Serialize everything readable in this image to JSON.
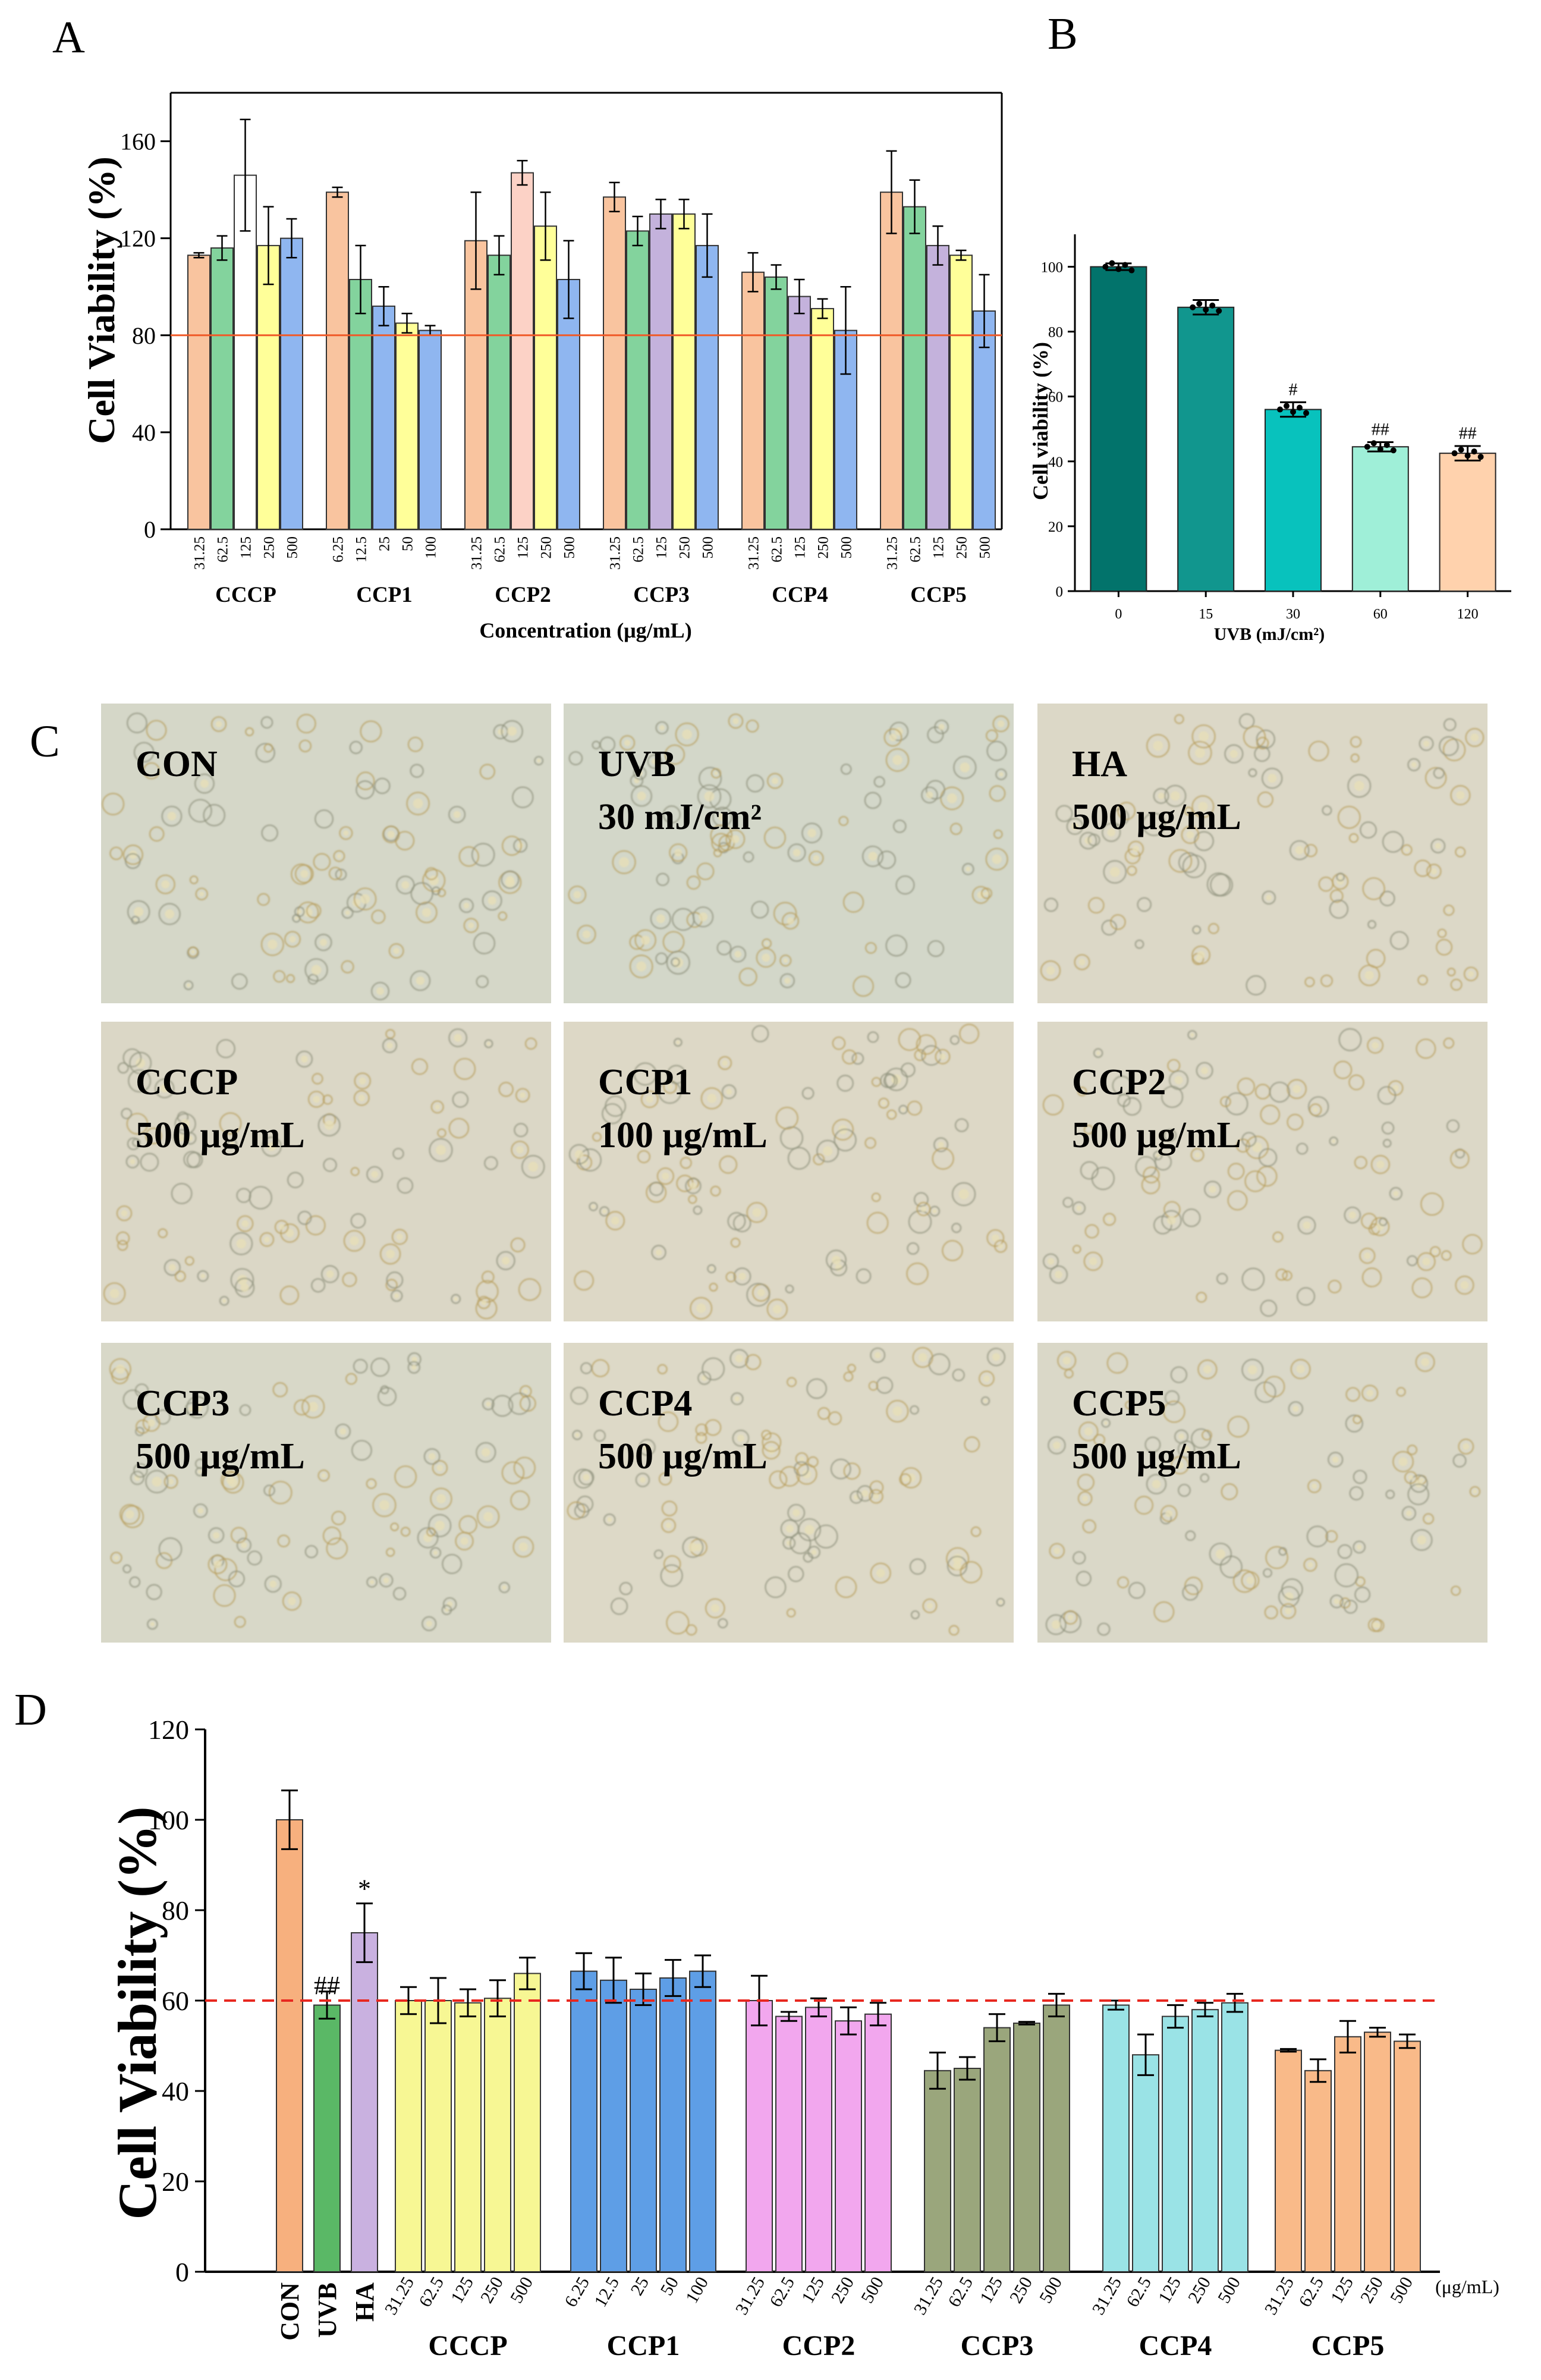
{
  "figure": {
    "panel_letters": [
      "A",
      "B",
      "C",
      "D"
    ],
    "colors": {
      "orange": "#f9c49f",
      "green": "#83d39d",
      "white": "#ffffff",
      "yellow": "#ffff99",
      "blue": "#8fb6f0",
      "pink": "#fcd2c6",
      "purple": "#c4b2dc",
      "tealDark": "#02736b",
      "teal": "#11968e",
      "cyan": "#08c2bd",
      "mint": "#9fefd8",
      "peach": "#ffd2ad",
      "orangeD": "#f7b07e",
      "greenD": "#5ab866",
      "lilacD": "#c9b1e0",
      "yellowD": "#f7f794",
      "blueD": "#5e9ee6",
      "pinkD": "#f2a7ee",
      "oliveD": "#9aa67c",
      "aquaD": "#9ae3e6",
      "apricotD": "#f9ba89",
      "threshold_red": "#f05a28",
      "dash_red": "#e8271f"
    },
    "micrographs": [
      {
        "line1": "CON",
        "line2": "",
        "tone": "#d5d7c8"
      },
      {
        "line1": "UVB",
        "line2": "30 mJ/cm²",
        "tone": "#d3d7c9"
      },
      {
        "line1": "HA",
        "line2": "500 μg/mL",
        "tone": "#dcd8c7"
      },
      {
        "line1": "CCCP",
        "line2": "500 μg/mL",
        "tone": "#dbd7c6"
      },
      {
        "line1": "CCP1",
        "line2": "100 μg/mL",
        "tone": "#ddd8c6"
      },
      {
        "line1": "CCP2",
        "line2": "500 μg/mL",
        "tone": "#dcd8c7"
      },
      {
        "line1": "CCP3",
        "line2": "500 μg/mL",
        "tone": "#d8d8c8"
      },
      {
        "line1": "CCP4",
        "line2": "500 μg/mL",
        "tone": "#ddd9c7"
      },
      {
        "line1": "CCP5",
        "line2": "500 μg/mL",
        "tone": "#dad8c8"
      }
    ]
  },
  "chart_data": [
    {
      "panel": "A",
      "type": "bar",
      "title": "",
      "xlabel": "Concentration (μg/mL)",
      "ylabel": "Cell Viability (%)",
      "ylim": [
        0,
        180
      ],
      "yticks": [
        0,
        40,
        80,
        120,
        160
      ],
      "threshold_line": 80,
      "groups": [
        {
          "name": "CCCP",
          "bars": [
            {
              "label": "31.25",
              "value": 113,
              "err": 1,
              "color": "orange"
            },
            {
              "label": "62.5",
              "value": 116,
              "err": 5,
              "color": "green"
            },
            {
              "label": "125",
              "value": 146,
              "err": 23,
              "color": "white"
            },
            {
              "label": "250",
              "value": 117,
              "err": 16,
              "color": "yellow"
            },
            {
              "label": "500",
              "value": 120,
              "err": 8,
              "color": "blue"
            }
          ]
        },
        {
          "name": "CCP1",
          "bars": [
            {
              "label": "6.25",
              "value": 139,
              "err": 2,
              "color": "orange"
            },
            {
              "label": "12.5",
              "value": 103,
              "err": 14,
              "color": "green"
            },
            {
              "label": "25",
              "value": 92,
              "err": 8,
              "color": "blue"
            },
            {
              "label": "50",
              "value": 85,
              "err": 4,
              "color": "yellow"
            },
            {
              "label": "100",
              "value": 82,
              "err": 2,
              "color": "blue"
            }
          ]
        },
        {
          "name": "CCP2",
          "bars": [
            {
              "label": "31.25",
              "value": 119,
              "err": 20,
              "color": "orange"
            },
            {
              "label": "62.5",
              "value": 113,
              "err": 8,
              "color": "green"
            },
            {
              "label": "125",
              "value": 147,
              "err": 5,
              "color": "pink"
            },
            {
              "label": "250",
              "value": 125,
              "err": 14,
              "color": "yellow"
            },
            {
              "label": "500",
              "value": 103,
              "err": 16,
              "color": "blue"
            }
          ]
        },
        {
          "name": "CCP3",
          "bars": [
            {
              "label": "31.25",
              "value": 137,
              "err": 6,
              "color": "orange"
            },
            {
              "label": "62.5",
              "value": 123,
              "err": 6,
              "color": "green"
            },
            {
              "label": "125",
              "value": 130,
              "err": 6,
              "color": "purple"
            },
            {
              "label": "250",
              "value": 130,
              "err": 6,
              "color": "yellow"
            },
            {
              "label": "500",
              "value": 117,
              "err": 13,
              "color": "blue"
            }
          ]
        },
        {
          "name": "CCP4",
          "bars": [
            {
              "label": "31.25",
              "value": 106,
              "err": 8,
              "color": "orange"
            },
            {
              "label": "62.5",
              "value": 104,
              "err": 5,
              "color": "green"
            },
            {
              "label": "125",
              "value": 96,
              "err": 7,
              "color": "purple"
            },
            {
              "label": "250",
              "value": 91,
              "err": 4,
              "color": "yellow"
            },
            {
              "label": "500",
              "value": 82,
              "err": 18,
              "color": "blue"
            }
          ]
        },
        {
          "name": "CCP5",
          "bars": [
            {
              "label": "31.25",
              "value": 139,
              "err": 17,
              "color": "orange"
            },
            {
              "label": "62.5",
              "value": 133,
              "err": 11,
              "color": "green"
            },
            {
              "label": "125",
              "value": 117,
              "err": 8,
              "color": "purple"
            },
            {
              "label": "250",
              "value": 113,
              "err": 2,
              "color": "yellow"
            },
            {
              "label": "500",
              "value": 90,
              "err": 15,
              "color": "blue"
            }
          ]
        }
      ]
    },
    {
      "panel": "B",
      "type": "bar",
      "title": "",
      "xlabel": "UVB (mJ/cm²)",
      "ylabel": "Cell viability (%)",
      "ylim": [
        0,
        110
      ],
      "yticks": [
        0,
        20,
        40,
        60,
        80,
        100
      ],
      "categories": [
        "0",
        "15",
        "30",
        "60",
        "120"
      ],
      "values": [
        100,
        87.5,
        56,
        44.5,
        42.5
      ],
      "errors": [
        0.3,
        1.5,
        1.5,
        0.7,
        1.5
      ],
      "annotations": [
        "",
        "",
        "#",
        "##",
        "##"
      ],
      "colors": [
        "tealDark",
        "teal",
        "cyan",
        "mint",
        "peach"
      ]
    },
    {
      "panel": "D",
      "type": "bar",
      "title": "",
      "xlabel": "",
      "ylabel": "Cell Viability (%)",
      "unit_label": "(μg/mL)",
      "ylim": [
        0,
        120
      ],
      "yticks": [
        0,
        20,
        40,
        60,
        80,
        100,
        120
      ],
      "threshold_line": 60,
      "groups": [
        {
          "name": "",
          "color": "",
          "bars": [
            {
              "label": "CON",
              "value": 100,
              "err": 6.5,
              "color": "orangeD",
              "annot": ""
            },
            {
              "label": "UVB",
              "value": 59,
              "err": 3,
              "color": "greenD",
              "annot": "##"
            },
            {
              "label": "HA",
              "value": 75,
              "err": 6.5,
              "color": "lilacD",
              "annot": "*"
            }
          ]
        },
        {
          "name": "CCCP",
          "color": "yellowD",
          "bars": [
            {
              "label": "31.25",
              "value": 60,
              "err": 3
            },
            {
              "label": "62.5",
              "value": 60,
              "err": 5
            },
            {
              "label": "125",
              "value": 59.5,
              "err": 3
            },
            {
              "label": "250",
              "value": 60.5,
              "err": 4
            },
            {
              "label": "500",
              "value": 66,
              "err": 3.5
            }
          ]
        },
        {
          "name": "CCP1",
          "color": "blueD",
          "bars": [
            {
              "label": "6.25",
              "value": 66.5,
              "err": 4
            },
            {
              "label": "12.5",
              "value": 64.5,
              "err": 5
            },
            {
              "label": "25",
              "value": 62.5,
              "err": 3.5
            },
            {
              "label": "50",
              "value": 65,
              "err": 4
            },
            {
              "label": "100",
              "value": 66.5,
              "err": 3.5
            }
          ]
        },
        {
          "name": "CCP2",
          "color": "pinkD",
          "bars": [
            {
              "label": "31.25",
              "value": 60,
              "err": 5.5
            },
            {
              "label": "62.5",
              "value": 56.5,
              "err": 1
            },
            {
              "label": "125",
              "value": 58.5,
              "err": 2
            },
            {
              "label": "250",
              "value": 55.5,
              "err": 3
            },
            {
              "label": "500",
              "value": 57,
              "err": 2.5
            }
          ]
        },
        {
          "name": "CCP3",
          "color": "oliveD",
          "bars": [
            {
              "label": "31.25",
              "value": 44.5,
              "err": 4
            },
            {
              "label": "62.5",
              "value": 45,
              "err": 2.5
            },
            {
              "label": "125",
              "value": 54,
              "err": 3
            },
            {
              "label": "250",
              "value": 55,
              "err": 0.3
            },
            {
              "label": "500",
              "value": 59,
              "err": 2.5
            }
          ]
        },
        {
          "name": "CCP4",
          "color": "aquaD",
          "bars": [
            {
              "label": "31.25",
              "value": 59,
              "err": 1
            },
            {
              "label": "62.5",
              "value": 48,
              "err": 4.5
            },
            {
              "label": "125",
              "value": 56.5,
              "err": 2.5
            },
            {
              "label": "250",
              "value": 58,
              "err": 1.5
            },
            {
              "label": "500",
              "value": 59.5,
              "err": 2
            }
          ]
        },
        {
          "name": "CCP5",
          "color": "apricotD",
          "bars": [
            {
              "label": "31.25",
              "value": 49,
              "err": 0.3
            },
            {
              "label": "62.5",
              "value": 44.5,
              "err": 2.5
            },
            {
              "label": "125",
              "value": 52,
              "err": 3.5
            },
            {
              "label": "250",
              "value": 53,
              "err": 1
            },
            {
              "label": "500",
              "value": 51,
              "err": 1.5
            }
          ]
        }
      ]
    }
  ]
}
